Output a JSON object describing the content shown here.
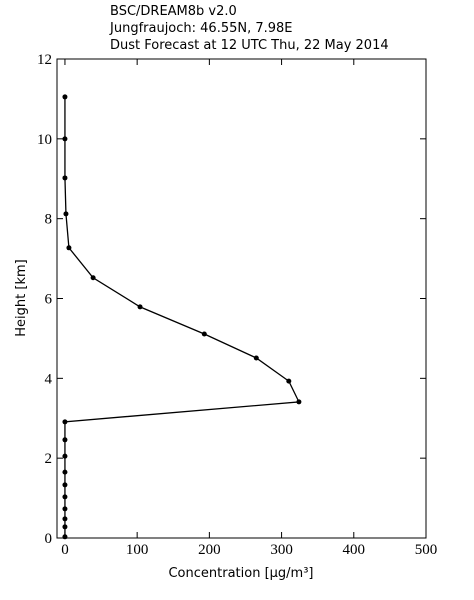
{
  "chart_data": {
    "type": "line",
    "title": [
      "BSC/DREAM8b v2.0",
      "Jungfraujoch: 46.55N, 7.98E",
      "Dust Forecast at 12 UTC Thu, 22 May 2014"
    ],
    "xlabel": "Concentration [μg/m³]",
    "ylabel": "Height [km]",
    "xlim": [
      -11,
      500
    ],
    "ylim": [
      0,
      12
    ],
    "xticks": [
      0,
      100,
      200,
      300,
      400,
      500
    ],
    "yticks": [
      0,
      2,
      4,
      6,
      8,
      10,
      12
    ],
    "color": "#000000",
    "x": [
      0,
      0,
      0,
      0,
      0,
      0,
      0,
      0,
      0,
      0,
      324,
      310,
      265,
      193,
      104,
      39,
      5.5,
      1.4,
      0,
      0,
      0
    ],
    "y": [
      0.03,
      0.28,
      0.48,
      0.73,
      1.03,
      1.33,
      1.65,
      2.05,
      2.46,
      2.91,
      3.41,
      3.93,
      4.51,
      5.11,
      5.79,
      6.52,
      7.27,
      8.12,
      9.02,
      10.0,
      11.05
    ]
  }
}
